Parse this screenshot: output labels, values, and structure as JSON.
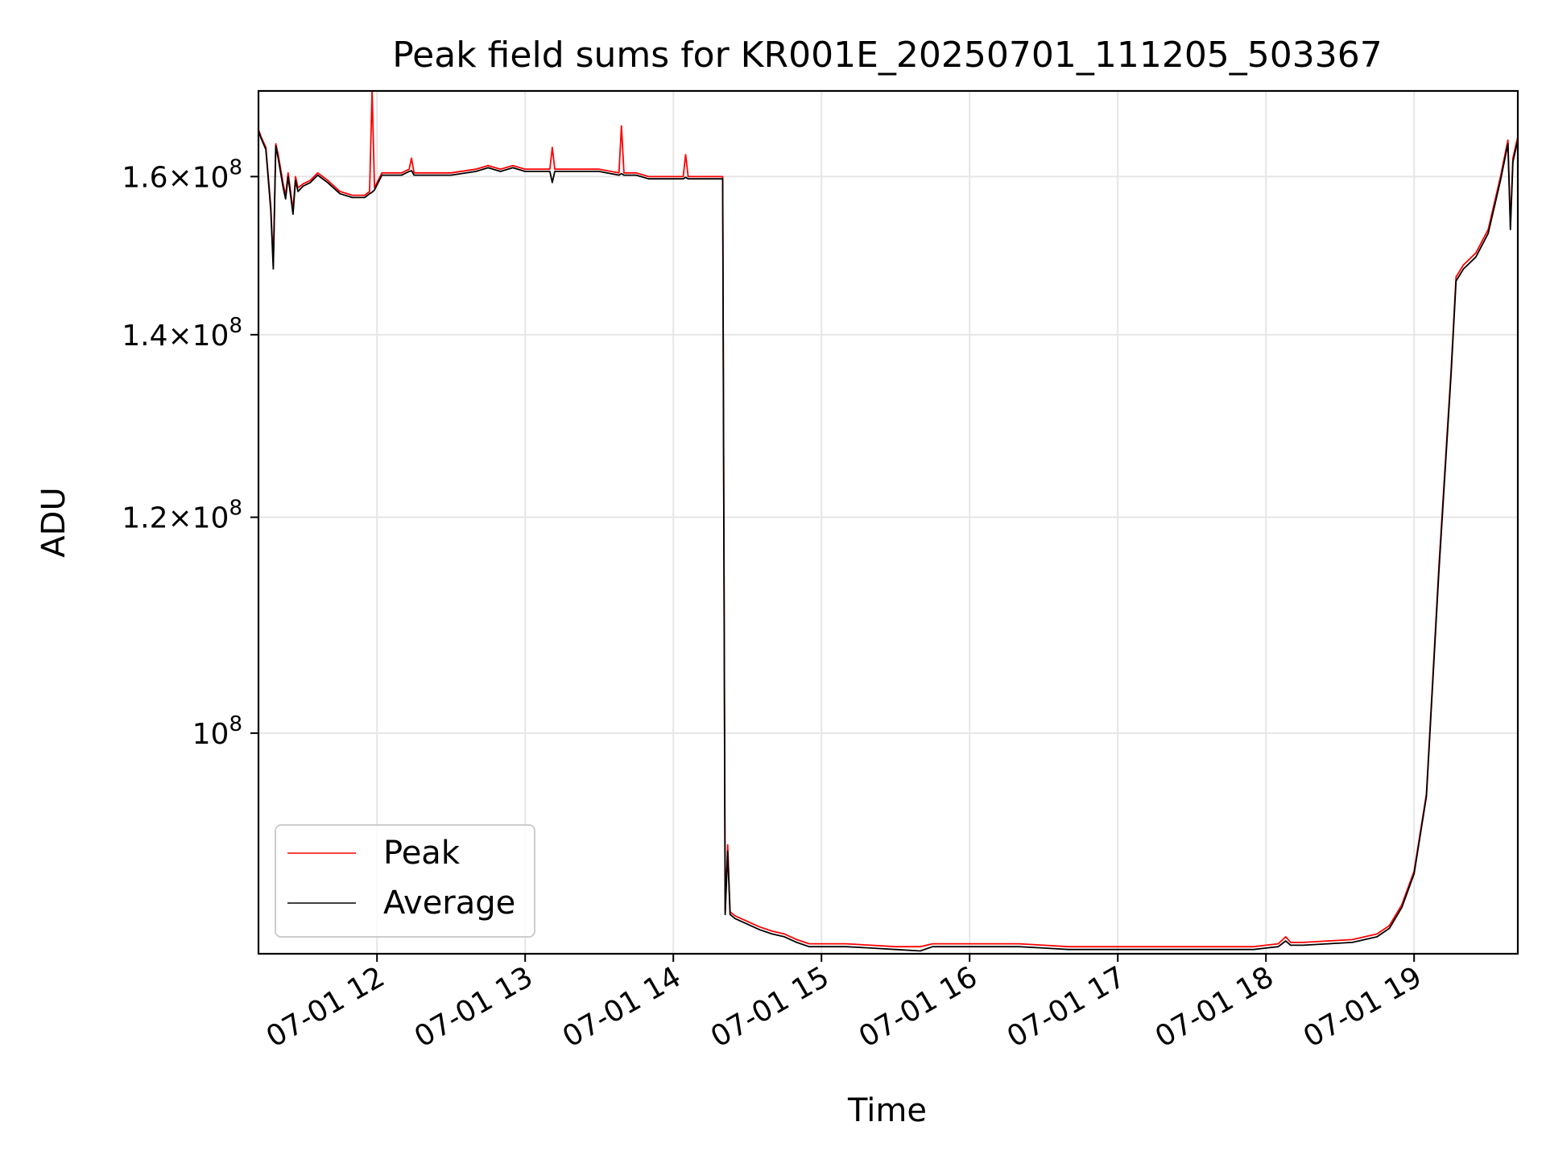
{
  "chart_data": {
    "type": "line",
    "title": "Peak field sums for KR001E_20250701_111205_503367",
    "xlabel": "Time",
    "ylabel": "ADU",
    "yscale": "log",
    "xlim": [
      "2025-07-01T11:12",
      "2025-07-01T19:42"
    ],
    "ylim": [
      83000000,
      172000000
    ],
    "grid": true,
    "legend": {
      "placement": "lower-left",
      "entries": [
        "Peak",
        "Average"
      ]
    },
    "x_ticks": [
      "07-01 12",
      "07-01 13",
      "07-01 14",
      "07-01 15",
      "07-01 16",
      "07-01 17",
      "07-01 18",
      "07-01 19"
    ],
    "y_ticks": [
      {
        "value": 100000000,
        "mantissa": "",
        "exponent": "8"
      },
      {
        "value": 120000000,
        "mantissa": "1.2",
        "exponent": "8"
      },
      {
        "value": 140000000,
        "mantissa": "1.4",
        "exponent": "8"
      },
      {
        "value": 160000000,
        "mantissa": "1.6",
        "exponent": "8"
      }
    ],
    "series": [
      {
        "name": "Peak",
        "color": "#ff0000",
        "points": [
          [
            "11:12",
            166500000
          ],
          [
            "11:13",
            165500000
          ],
          [
            "11:15",
            164000000
          ],
          [
            "11:17",
            156000000
          ],
          [
            "11:18",
            148500000
          ],
          [
            "11:19",
            164500000
          ],
          [
            "11:20",
            163000000
          ],
          [
            "11:22",
            159000000
          ],
          [
            "11:23",
            157500000
          ],
          [
            "11:24",
            160500000
          ],
          [
            "11:25",
            158000000
          ],
          [
            "11:26",
            155500000
          ],
          [
            "11:27",
            160000000
          ],
          [
            "11:28",
            158500000
          ],
          [
            "11:30",
            159000000
          ],
          [
            "11:33",
            159500000
          ],
          [
            "11:36",
            160500000
          ],
          [
            "11:40",
            159500000
          ],
          [
            "11:45",
            158000000
          ],
          [
            "11:50",
            157500000
          ],
          [
            "11:55",
            157500000
          ],
          [
            "11:57",
            158000000
          ],
          [
            "11:58",
            172000000
          ],
          [
            "11:59",
            158500000
          ],
          [
            "12:02",
            160500000
          ],
          [
            "12:05",
            160500000
          ],
          [
            "12:10",
            160500000
          ],
          [
            "12:13",
            161000000
          ],
          [
            "12:14",
            162500000
          ],
          [
            "12:15",
            160500000
          ],
          [
            "12:20",
            160500000
          ],
          [
            "12:25",
            160500000
          ],
          [
            "12:30",
            160500000
          ],
          [
            "12:40",
            161000000
          ],
          [
            "12:45",
            161500000
          ],
          [
            "12:50",
            161000000
          ],
          [
            "12:55",
            161500000
          ],
          [
            "13:00",
            161000000
          ],
          [
            "13:05",
            161000000
          ],
          [
            "13:10",
            161000000
          ],
          [
            "13:11",
            164000000
          ],
          [
            "13:12",
            161000000
          ],
          [
            "13:15",
            161000000
          ],
          [
            "13:20",
            161000000
          ],
          [
            "13:30",
            161000000
          ],
          [
            "13:38",
            160500000
          ],
          [
            "13:39",
            167000000
          ],
          [
            "13:40",
            160500000
          ],
          [
            "13:45",
            160500000
          ],
          [
            "13:50",
            160000000
          ],
          [
            "13:55",
            160000000
          ],
          [
            "14:00",
            160000000
          ],
          [
            "14:04",
            160000000
          ],
          [
            "14:05",
            163000000
          ],
          [
            "14:06",
            160000000
          ],
          [
            "14:10",
            160000000
          ],
          [
            "14:15",
            160000000
          ],
          [
            "14:20",
            160000000
          ],
          [
            "14:21",
            86000000
          ],
          [
            "14:22",
            91000000
          ],
          [
            "14:23",
            86000000
          ],
          [
            "14:25",
            85700000
          ],
          [
            "14:30",
            85300000
          ],
          [
            "14:35",
            84900000
          ],
          [
            "14:40",
            84600000
          ],
          [
            "14:45",
            84400000
          ],
          [
            "14:50",
            84000000
          ],
          [
            "14:55",
            83700000
          ],
          [
            "15:00",
            83700000
          ],
          [
            "15:10",
            83700000
          ],
          [
            "15:20",
            83600000
          ],
          [
            "15:30",
            83500000
          ],
          [
            "15:40",
            83500000
          ],
          [
            "15:45",
            83700000
          ],
          [
            "15:50",
            83700000
          ],
          [
            "16:00",
            83700000
          ],
          [
            "16:10",
            83700000
          ],
          [
            "16:20",
            83700000
          ],
          [
            "16:30",
            83600000
          ],
          [
            "16:40",
            83500000
          ],
          [
            "16:50",
            83500000
          ],
          [
            "17:00",
            83500000
          ],
          [
            "17:20",
            83500000
          ],
          [
            "17:40",
            83500000
          ],
          [
            "17:55",
            83500000
          ],
          [
            "18:00",
            83600000
          ],
          [
            "18:05",
            83700000
          ],
          [
            "18:08",
            84200000
          ],
          [
            "18:10",
            83800000
          ],
          [
            "18:15",
            83800000
          ],
          [
            "18:25",
            83900000
          ],
          [
            "18:35",
            84000000
          ],
          [
            "18:45",
            84400000
          ],
          [
            "18:50",
            85000000
          ],
          [
            "18:55",
            86500000
          ],
          [
            "19:00",
            89000000
          ],
          [
            "19:05",
            95000000
          ],
          [
            "19:10",
            115000000
          ],
          [
            "19:15",
            136000000
          ],
          [
            "19:17",
            147000000
          ],
          [
            "19:20",
            148500000
          ],
          [
            "19:25",
            150000000
          ],
          [
            "19:30",
            153000000
          ],
          [
            "19:35",
            160000000
          ],
          [
            "19:38",
            165000000
          ],
          [
            "19:39",
            153500000
          ],
          [
            "19:40",
            162500000
          ],
          [
            "19:42",
            165500000
          ]
        ]
      },
      {
        "name": "Average",
        "color": "#000000",
        "points": [
          [
            "11:12",
            166300000
          ],
          [
            "11:13",
            165300000
          ],
          [
            "11:15",
            163700000
          ],
          [
            "11:17",
            155500000
          ],
          [
            "11:18",
            148000000
          ],
          [
            "11:19",
            164200000
          ],
          [
            "11:20",
            162500000
          ],
          [
            "11:22",
            158500000
          ],
          [
            "11:23",
            157000000
          ],
          [
            "11:24",
            160000000
          ],
          [
            "11:25",
            157500000
          ],
          [
            "11:26",
            155000000
          ],
          [
            "11:27",
            159500000
          ],
          [
            "11:28",
            158000000
          ],
          [
            "11:30",
            158700000
          ],
          [
            "11:33",
            159200000
          ],
          [
            "11:36",
            160200000
          ],
          [
            "11:40",
            159200000
          ],
          [
            "11:45",
            157700000
          ],
          [
            "11:50",
            157200000
          ],
          [
            "11:55",
            157200000
          ],
          [
            "11:57",
            157700000
          ],
          [
            "11:58",
            157900000
          ],
          [
            "11:59",
            158200000
          ],
          [
            "12:02",
            160200000
          ],
          [
            "12:05",
            160200000
          ],
          [
            "12:10",
            160200000
          ],
          [
            "12:13",
            160700000
          ],
          [
            "12:14",
            160800000
          ],
          [
            "12:15",
            160200000
          ],
          [
            "12:20",
            160200000
          ],
          [
            "12:25",
            160200000
          ],
          [
            "12:30",
            160200000
          ],
          [
            "12:40",
            160700000
          ],
          [
            "12:45",
            161200000
          ],
          [
            "12:50",
            160700000
          ],
          [
            "12:55",
            161200000
          ],
          [
            "13:00",
            160700000
          ],
          [
            "13:05",
            160700000
          ],
          [
            "13:10",
            160700000
          ],
          [
            "13:11",
            159200000
          ],
          [
            "13:12",
            160700000
          ],
          [
            "13:15",
            160700000
          ],
          [
            "13:20",
            160700000
          ],
          [
            "13:30",
            160700000
          ],
          [
            "13:38",
            160200000
          ],
          [
            "13:39",
            160400000
          ],
          [
            "13:40",
            160200000
          ],
          [
            "13:45",
            160200000
          ],
          [
            "13:50",
            159700000
          ],
          [
            "13:55",
            159700000
          ],
          [
            "14:00",
            159700000
          ],
          [
            "14:04",
            159700000
          ],
          [
            "14:05",
            159900000
          ],
          [
            "14:06",
            159700000
          ],
          [
            "14:10",
            159700000
          ],
          [
            "14:15",
            159700000
          ],
          [
            "14:20",
            159700000
          ],
          [
            "14:21",
            85800000
          ],
          [
            "14:22",
            90500000
          ],
          [
            "14:23",
            85800000
          ],
          [
            "14:25",
            85500000
          ],
          [
            "14:30",
            85100000
          ],
          [
            "14:35",
            84700000
          ],
          [
            "14:40",
            84400000
          ],
          [
            "14:45",
            84200000
          ],
          [
            "14:50",
            83800000
          ],
          [
            "14:55",
            83500000
          ],
          [
            "15:00",
            83500000
          ],
          [
            "15:10",
            83500000
          ],
          [
            "15:20",
            83400000
          ],
          [
            "15:30",
            83300000
          ],
          [
            "15:40",
            83200000
          ],
          [
            "15:45",
            83500000
          ],
          [
            "15:50",
            83500000
          ],
          [
            "16:00",
            83500000
          ],
          [
            "16:10",
            83500000
          ],
          [
            "16:20",
            83500000
          ],
          [
            "16:30",
            83400000
          ],
          [
            "16:40",
            83300000
          ],
          [
            "16:50",
            83300000
          ],
          [
            "17:00",
            83300000
          ],
          [
            "17:20",
            83300000
          ],
          [
            "17:40",
            83300000
          ],
          [
            "17:55",
            83300000
          ],
          [
            "18:00",
            83400000
          ],
          [
            "18:05",
            83500000
          ],
          [
            "18:08",
            83900000
          ],
          [
            "18:10",
            83600000
          ],
          [
            "18:15",
            83600000
          ],
          [
            "18:25",
            83700000
          ],
          [
            "18:35",
            83800000
          ],
          [
            "18:45",
            84200000
          ],
          [
            "18:50",
            84800000
          ],
          [
            "18:55",
            86300000
          ],
          [
            "19:00",
            88800000
          ],
          [
            "19:05",
            94800000
          ],
          [
            "19:10",
            114500000
          ],
          [
            "19:15",
            135500000
          ],
          [
            "19:17",
            146500000
          ],
          [
            "19:20",
            148000000
          ],
          [
            "19:25",
            149500000
          ],
          [
            "19:30",
            152500000
          ],
          [
            "19:35",
            159500000
          ],
          [
            "19:38",
            164500000
          ],
          [
            "19:39",
            153000000
          ],
          [
            "19:40",
            162000000
          ],
          [
            "19:42",
            165000000
          ]
        ]
      }
    ]
  }
}
